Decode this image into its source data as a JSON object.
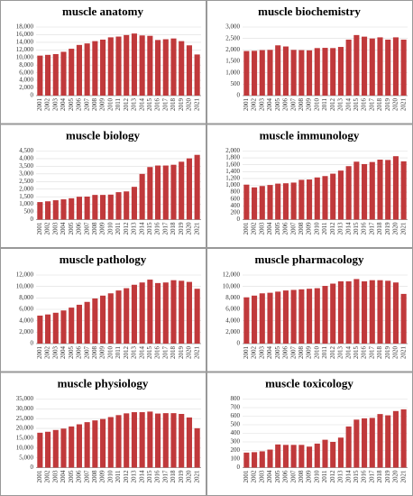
{
  "chart_data": [
    {
      "type": "bar",
      "title": "muscle anatomy",
      "color": "#c0393b",
      "grid": true,
      "categories": [
        "2001",
        "2002",
        "2003",
        "2004",
        "2005",
        "2006",
        "2007",
        "2008",
        "2009",
        "2010",
        "2011",
        "2012",
        "2013",
        "2014",
        "2015",
        "2016",
        "2017",
        "2018",
        "2019",
        "2020",
        "2021"
      ],
      "values": [
        10500,
        10700,
        10900,
        11500,
        12300,
        13300,
        13700,
        14300,
        14700,
        15300,
        15500,
        15900,
        16300,
        15800,
        15700,
        14600,
        14800,
        15000,
        14300,
        13200,
        10800
      ],
      "ylim": [
        0,
        18000
      ],
      "yticks": [
        0,
        {
          "value": 2000,
          "label": "2,000"
        },
        {
          "value": 4000,
          "label": "4,000"
        },
        {
          "value": 6000,
          "label": "6,000"
        },
        {
          "value": 8000,
          "label": "8,000"
        },
        {
          "value": 10000,
          "label": "10,000"
        },
        {
          "value": 12000,
          "label": "12,000"
        },
        {
          "value": 14000,
          "label": "14,000"
        },
        {
          "value": 16000,
          "label": "16,000"
        },
        {
          "value": 18000,
          "label": "18,000"
        }
      ]
    },
    {
      "type": "bar",
      "title": "muscle biochemistry",
      "color": "#c0393b",
      "grid": true,
      "categories": [
        "2001",
        "2002",
        "2003",
        "2004",
        "2005",
        "2006",
        "2007",
        "2008",
        "2009",
        "2010",
        "2011",
        "2012",
        "2013",
        "2014",
        "2015",
        "2016",
        "2017",
        "2018",
        "2019",
        "2020",
        "2021"
      ],
      "values": [
        1950,
        1960,
        1990,
        2000,
        2200,
        2150,
        2000,
        1990,
        1980,
        2080,
        2090,
        2080,
        2130,
        2450,
        2650,
        2580,
        2500,
        2550,
        2450,
        2550,
        2450
      ],
      "ylim": [
        0,
        3000
      ],
      "yticks": [
        0,
        500,
        {
          "value": 1000,
          "label": "1,000"
        },
        {
          "value": 1500,
          "label": "1,500"
        },
        {
          "value": 2000,
          "label": "2,000"
        },
        {
          "value": 2500,
          "label": "2,500"
        },
        {
          "value": 3000,
          "label": "3,000"
        }
      ]
    },
    {
      "type": "bar",
      "title": "muscle biology",
      "color": "#c0393b",
      "grid": true,
      "categories": [
        "2001",
        "2002",
        "2003",
        "2004",
        "2005",
        "2006",
        "2007",
        "2008",
        "2009",
        "2010",
        "2011",
        "2012",
        "2013",
        "2014",
        "2015",
        "2016",
        "2017",
        "2018",
        "2019",
        "2020",
        "2021"
      ],
      "values": [
        1150,
        1200,
        1270,
        1330,
        1400,
        1500,
        1510,
        1620,
        1620,
        1640,
        1800,
        1850,
        2150,
        3000,
        3450,
        3550,
        3550,
        3600,
        3800,
        4020,
        4250
      ],
      "ylim": [
        0,
        4500
      ],
      "yticks": [
        0,
        500,
        {
          "value": 1000,
          "label": "1,000"
        },
        {
          "value": 1500,
          "label": "1,500"
        },
        {
          "value": 2000,
          "label": "2,000"
        },
        {
          "value": 2500,
          "label": "2,500"
        },
        {
          "value": 3000,
          "label": "3,000"
        },
        {
          "value": 3500,
          "label": "3,500"
        },
        {
          "value": 4000,
          "label": "4,000"
        },
        {
          "value": 4500,
          "label": "4,500"
        }
      ]
    },
    {
      "type": "bar",
      "title": "muscle immunology",
      "color": "#c0393b",
      "grid": true,
      "categories": [
        "2001",
        "2002",
        "2003",
        "2004",
        "2005",
        "2006",
        "2007",
        "2008",
        "2009",
        "2010",
        "2011",
        "2012",
        "2013",
        "2014",
        "2015",
        "2016",
        "2017",
        "2018",
        "2019",
        "2020",
        "2021"
      ],
      "values": [
        1020,
        940,
        980,
        1010,
        1050,
        1060,
        1080,
        1160,
        1170,
        1230,
        1270,
        1340,
        1430,
        1560,
        1690,
        1620,
        1680,
        1750,
        1740,
        1850,
        1700
      ],
      "ylim": [
        0,
        2000
      ],
      "yticks": [
        0,
        200,
        400,
        600,
        800,
        {
          "value": 1000,
          "label": "1,000"
        },
        {
          "value": 1200,
          "label": "1,200"
        },
        {
          "value": 1400,
          "label": "1,400"
        },
        {
          "value": 1600,
          "label": "1,600"
        },
        {
          "value": 1800,
          "label": "1,800"
        },
        {
          "value": 2000,
          "label": "2,000"
        }
      ]
    },
    {
      "type": "bar",
      "title": "muscle pathology",
      "color": "#c0393b",
      "grid": true,
      "categories": [
        "2001",
        "2002",
        "2003",
        "2004",
        "2005",
        "2006",
        "2007",
        "2008",
        "2009",
        "2010",
        "2011",
        "2012",
        "2013",
        "2014",
        "2015",
        "2016",
        "2017",
        "2018",
        "2019",
        "2020",
        "2021"
      ],
      "values": [
        4900,
        5100,
        5400,
        5800,
        6300,
        6800,
        7300,
        7900,
        8400,
        8800,
        9300,
        9700,
        10300,
        10700,
        11200,
        10600,
        10700,
        11100,
        11000,
        10800,
        9600
      ],
      "ylim": [
        0,
        12000
      ],
      "yticks": [
        0,
        {
          "value": 2000,
          "label": "2,000"
        },
        {
          "value": 4000,
          "label": "4,000"
        },
        {
          "value": 6000,
          "label": "6,000"
        },
        {
          "value": 8000,
          "label": "8,000"
        },
        {
          "value": 10000,
          "label": "10,000"
        },
        {
          "value": 12000,
          "label": "12,000"
        }
      ]
    },
    {
      "type": "bar",
      "title": "muscle pharmacology",
      "color": "#c0393b",
      "grid": true,
      "categories": [
        "2001",
        "2002",
        "2003",
        "2004",
        "2005",
        "2006",
        "2007",
        "2008",
        "2009",
        "2010",
        "2011",
        "2012",
        "2013",
        "2014",
        "2015",
        "2016",
        "2017",
        "2018",
        "2019",
        "2020",
        "2021"
      ],
      "values": [
        8100,
        8400,
        8800,
        8900,
        9100,
        9300,
        9400,
        9500,
        9600,
        9700,
        10100,
        10500,
        10900,
        10900,
        11300,
        10900,
        11100,
        11100,
        11000,
        10700,
        8700
      ],
      "ylim": [
        0,
        12000
      ],
      "yticks": [
        0,
        {
          "value": 2000,
          "label": "2,000"
        },
        {
          "value": 4000,
          "label": "4,000"
        },
        {
          "value": 6000,
          "label": "6,000"
        },
        {
          "value": 8000,
          "label": "8,000"
        },
        {
          "value": 10000,
          "label": "10,000"
        },
        {
          "value": 12000,
          "label": "12,000"
        }
      ]
    },
    {
      "type": "bar",
      "title": "muscle physiology",
      "color": "#c0393b",
      "grid": true,
      "categories": [
        "2001",
        "2002",
        "2003",
        "2004",
        "2005",
        "2006",
        "2007",
        "2008",
        "2009",
        "2010",
        "2011",
        "2012",
        "2013",
        "2014",
        "2015",
        "2016",
        "2017",
        "2018",
        "2019",
        "2020",
        "2021"
      ],
      "values": [
        17800,
        18300,
        19200,
        19900,
        21000,
        22100,
        23200,
        24100,
        24800,
        25800,
        26800,
        27700,
        28300,
        28300,
        28600,
        27600,
        27800,
        27800,
        27400,
        25600,
        20100
      ],
      "ylim": [
        0,
        35000
      ],
      "yticks": [
        0,
        {
          "value": 5000,
          "label": "5,000"
        },
        {
          "value": 10000,
          "label": "10,000"
        },
        {
          "value": 15000,
          "label": "15,000"
        },
        {
          "value": 20000,
          "label": "20,000"
        },
        {
          "value": 25000,
          "label": "25,000"
        },
        {
          "value": 30000,
          "label": "30,000"
        },
        {
          "value": 35000,
          "label": "35,000"
        }
      ]
    },
    {
      "type": "bar",
      "title": "muscle toxicology",
      "color": "#c0393b",
      "grid": true,
      "categories": [
        "2001",
        "2002",
        "2003",
        "2004",
        "2005",
        "2006",
        "2007",
        "2008",
        "2009",
        "2010",
        "2011",
        "2012",
        "2013",
        "2014",
        "2015",
        "2016",
        "2017",
        "2018",
        "2019",
        "2020",
        "2021"
      ],
      "values": [
        175,
        180,
        190,
        210,
        270,
        265,
        265,
        265,
        245,
        280,
        325,
        300,
        350,
        480,
        560,
        575,
        580,
        625,
        610,
        660,
        680
      ],
      "ylim": [
        0,
        800
      ],
      "yticks": [
        0,
        100,
        200,
        300,
        400,
        500,
        600,
        700,
        800
      ]
    }
  ]
}
